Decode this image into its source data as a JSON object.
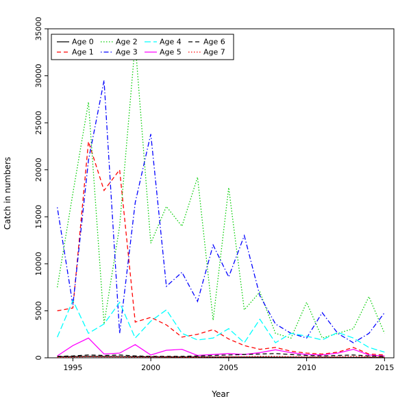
{
  "chart_data": {
    "type": "line",
    "xlabel": "Year",
    "ylabel": "Catch in numbers",
    "xlim": [
      1993.4,
      2015.6
    ],
    "ylim": [
      0,
      35000
    ],
    "xticks": [
      1995,
      2000,
      2005,
      2010,
      2015
    ],
    "yticks": [
      0,
      5000,
      10000,
      15000,
      20000,
      25000,
      30000,
      35000
    ],
    "grid": false,
    "legend_position": "top-left",
    "legend_columns": 4,
    "x": [
      1994,
      1995,
      1996,
      1997,
      1998,
      1999,
      2000,
      2001,
      2002,
      2003,
      2004,
      2005,
      2006,
      2007,
      2008,
      2009,
      2010,
      2011,
      2012,
      2013,
      2014,
      2015
    ],
    "series": [
      {
        "name": "Age 0",
        "color": "#000000",
        "dash": "solid",
        "values": [
          120,
          130,
          150,
          140,
          130,
          120,
          110,
          100,
          90,
          90,
          80,
          80,
          70,
          70,
          60,
          60,
          50,
          50,
          50,
          40,
          40,
          40
        ]
      },
      {
        "name": "Age 1",
        "color": "#ff0000",
        "dash": "dashed",
        "values": [
          5000,
          5300,
          23000,
          17800,
          20000,
          3800,
          4300,
          3500,
          2200,
          2500,
          3000,
          2000,
          1300,
          900,
          1100,
          700,
          500,
          400,
          600,
          1100,
          400,
          300
        ]
      },
      {
        "name": "Age 2",
        "color": "#00cd00",
        "dash": "dotted",
        "values": [
          7500,
          17500,
          27200,
          3600,
          14000,
          33500,
          12200,
          16100,
          14000,
          19200,
          4000,
          18100,
          5100,
          7000,
          2600,
          2100,
          5900,
          2100,
          2600,
          3100,
          6500,
          2600
        ]
      },
      {
        "name": "Age 3",
        "color": "#0000ff",
        "dash": "dashdot",
        "values": [
          16000,
          5600,
          21000,
          29500,
          2600,
          16500,
          23800,
          7600,
          9100,
          6000,
          12000,
          8600,
          13000,
          6600,
          3600,
          2600,
          2100,
          4800,
          2600,
          1600,
          2600,
          4800
        ]
      },
      {
        "name": "Age 4",
        "color": "#00ffff",
        "dash": "longdash",
        "values": [
          2200,
          6100,
          2600,
          3600,
          5900,
          2100,
          3900,
          5100,
          2600,
          1900,
          2100,
          3100,
          1600,
          4100,
          1600,
          2600,
          2300,
          1900,
          2700,
          2100,
          1100,
          600
        ]
      },
      {
        "name": "Age 5",
        "color": "#ff00ff",
        "dash": "solid",
        "values": [
          200,
          1300,
          2100,
          400,
          500,
          1400,
          300,
          800,
          900,
          250,
          350,
          450,
          350,
          550,
          850,
          550,
          350,
          300,
          500,
          900,
          300,
          200
        ]
      },
      {
        "name": "Age 6",
        "color": "#000000",
        "dash": "dashed",
        "values": [
          150,
          200,
          300,
          250,
          300,
          200,
          150,
          150,
          150,
          200,
          250,
          300,
          350,
          400,
          450,
          350,
          250,
          200,
          250,
          300,
          200,
          150
        ]
      },
      {
        "name": "Age 7",
        "color": "#ff0000",
        "dash": "dotted",
        "values": [
          50,
          80,
          120,
          100,
          100,
          80,
          80,
          80,
          60,
          60,
          80,
          100,
          120,
          150,
          150,
          120,
          100,
          80,
          100,
          150,
          100,
          80
        ]
      }
    ]
  }
}
